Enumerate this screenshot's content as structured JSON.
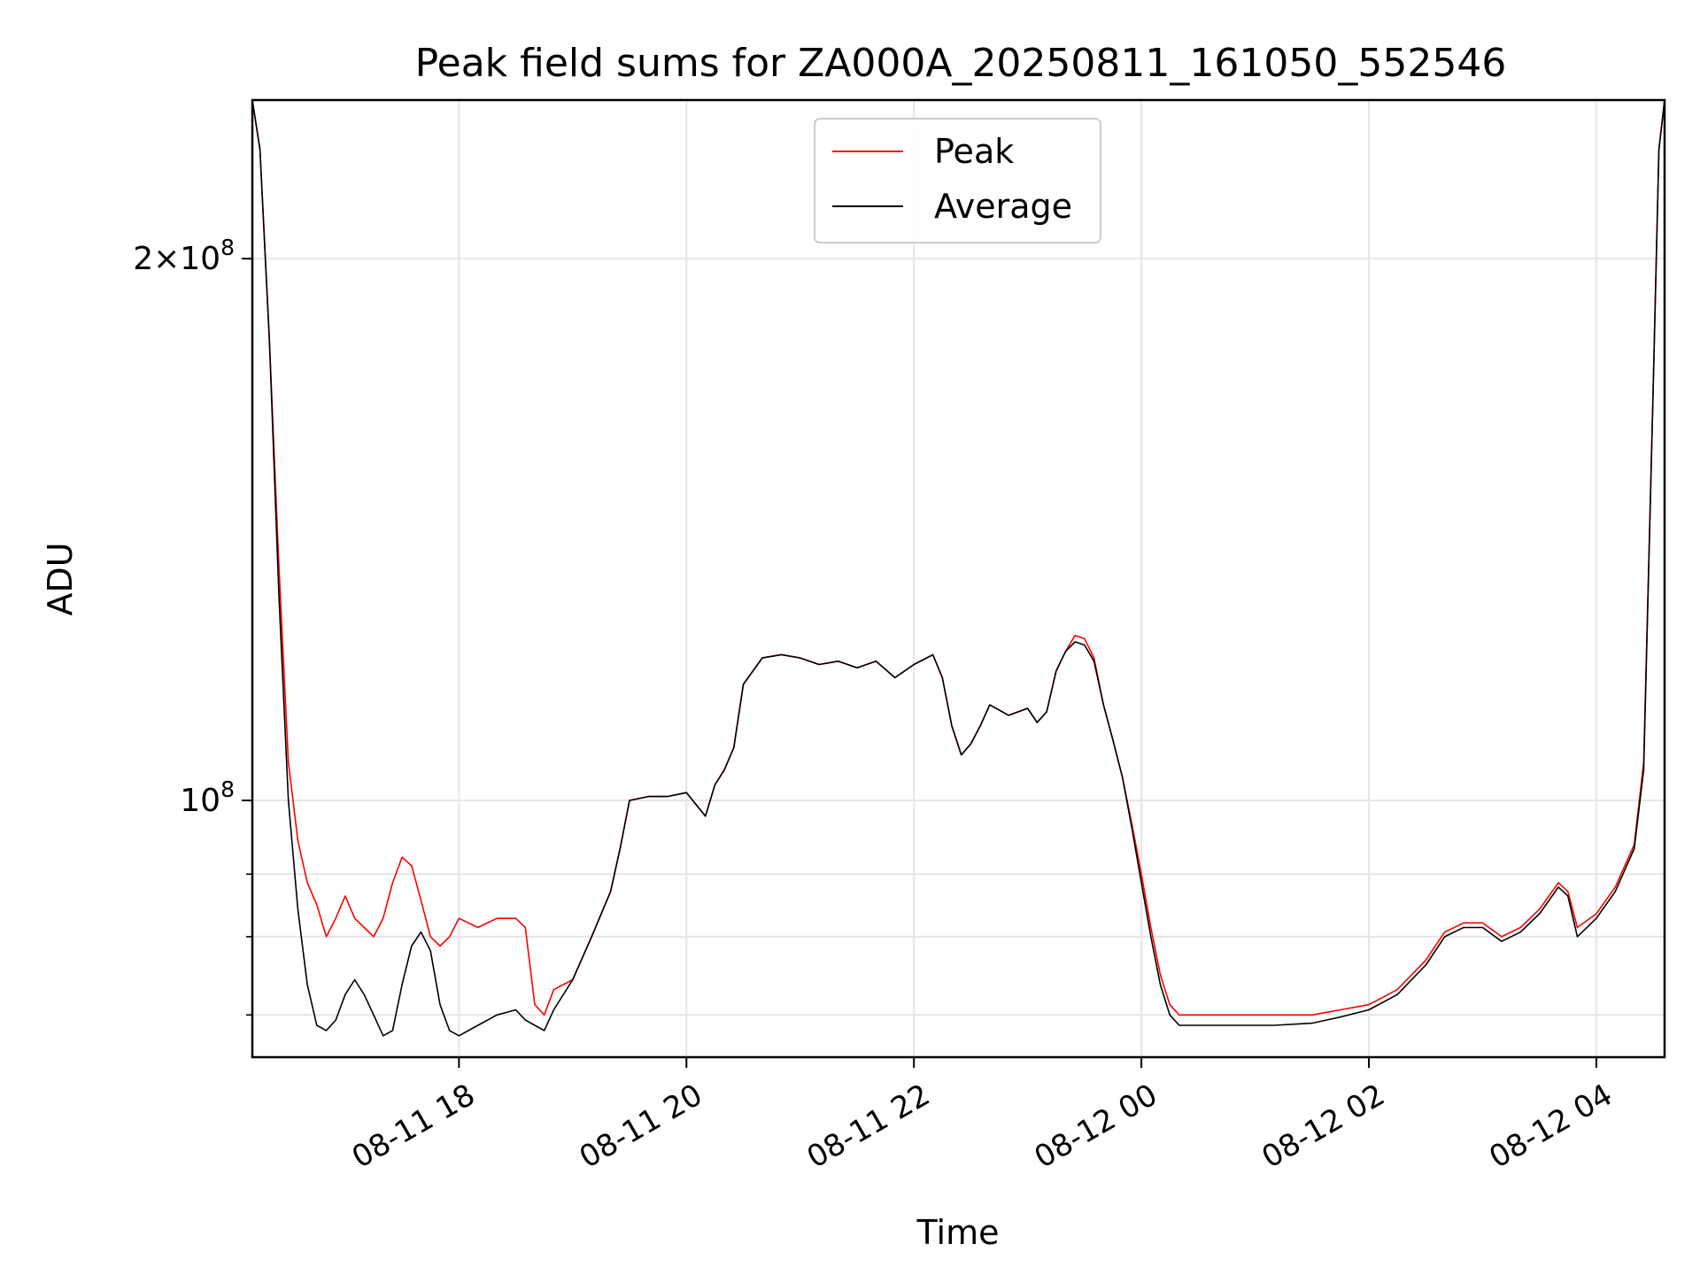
{
  "chart_data": {
    "type": "line",
    "title": "Peak field sums for ZA000A_20250811_161050_552546",
    "xlabel": "Time",
    "ylabel": "ADU",
    "yscale": "log",
    "grid": true,
    "legend_placement": "upper center",
    "xlim": [
      "2025-08-11 16:11",
      "2025-08-12 04:36"
    ],
    "ylim": [
      72000000,
      245000000
    ],
    "x_ticks": [
      {
        "label": "08-11 18",
        "time": "2025-08-11 18:00"
      },
      {
        "label": "08-11 20",
        "time": "2025-08-11 20:00"
      },
      {
        "label": "08-11 22",
        "time": "2025-08-11 22:00"
      },
      {
        "label": "08-12 00",
        "time": "2025-08-12 00:00"
      },
      {
        "label": "08-12 02",
        "time": "2025-08-12 02:00"
      },
      {
        "label": "08-12 04",
        "time": "2025-08-12 04:00"
      }
    ],
    "y_ticks": [
      {
        "value": 100000000,
        "mantissa": "",
        "base": "10",
        "exp": "8"
      },
      {
        "value": 200000000,
        "mantissa": "2×",
        "base": "10",
        "exp": "8"
      }
    ],
    "y_minor_ticks": [
      76000000,
      84000000,
      91000000
    ],
    "series": [
      {
        "name": "Peak",
        "color": "#ff0000",
        "points": [
          [
            "2025-08-11 16:11",
            245000000
          ],
          [
            "2025-08-11 16:15",
            230000000
          ],
          [
            "2025-08-11 16:20",
            180000000
          ],
          [
            "2025-08-11 16:25",
            135000000
          ],
          [
            "2025-08-11 16:30",
            105000000
          ],
          [
            "2025-08-11 16:35",
            95000000
          ],
          [
            "2025-08-11 16:40",
            90000000
          ],
          [
            "2025-08-11 16:45",
            87500000
          ],
          [
            "2025-08-11 16:50",
            84000000
          ],
          [
            "2025-08-11 16:55",
            86000000
          ],
          [
            "2025-08-11 17:00",
            88500000
          ],
          [
            "2025-08-11 17:05",
            86000000
          ],
          [
            "2025-08-11 17:10",
            85000000
          ],
          [
            "2025-08-11 17:15",
            84000000
          ],
          [
            "2025-08-11 17:20",
            86000000
          ],
          [
            "2025-08-11 17:25",
            90000000
          ],
          [
            "2025-08-11 17:30",
            93000000
          ],
          [
            "2025-08-11 17:35",
            92000000
          ],
          [
            "2025-08-11 17:40",
            88000000
          ],
          [
            "2025-08-11 17:45",
            84000000
          ],
          [
            "2025-08-11 17:50",
            83000000
          ],
          [
            "2025-08-11 17:55",
            84000000
          ],
          [
            "2025-08-11 18:00",
            86000000
          ],
          [
            "2025-08-11 18:10",
            85000000
          ],
          [
            "2025-08-11 18:20",
            86000000
          ],
          [
            "2025-08-11 18:30",
            86000000
          ],
          [
            "2025-08-11 18:35",
            85000000
          ],
          [
            "2025-08-11 18:40",
            77000000
          ],
          [
            "2025-08-11 18:45",
            76000000
          ],
          [
            "2025-08-11 18:50",
            78500000
          ],
          [
            "2025-08-11 19:00",
            79500000
          ],
          [
            "2025-08-11 19:10",
            84000000
          ],
          [
            "2025-08-11 19:20",
            89000000
          ],
          [
            "2025-08-11 19:25",
            94000000
          ],
          [
            "2025-08-11 19:30",
            100000000
          ],
          [
            "2025-08-11 19:40",
            100500000
          ],
          [
            "2025-08-11 19:50",
            100500000
          ],
          [
            "2025-08-11 20:00",
            101000000
          ],
          [
            "2025-08-11 20:10",
            98000000
          ],
          [
            "2025-08-11 20:15",
            102000000
          ],
          [
            "2025-08-11 20:20",
            104000000
          ],
          [
            "2025-08-11 20:25",
            107000000
          ],
          [
            "2025-08-11 20:30",
            116000000
          ],
          [
            "2025-08-11 20:40",
            120000000
          ],
          [
            "2025-08-11 20:50",
            120500000
          ],
          [
            "2025-08-11 21:00",
            120000000
          ],
          [
            "2025-08-11 21:10",
            119000000
          ],
          [
            "2025-08-11 21:20",
            119500000
          ],
          [
            "2025-08-11 21:30",
            118500000
          ],
          [
            "2025-08-11 21:40",
            119500000
          ],
          [
            "2025-08-11 21:50",
            117000000
          ],
          [
            "2025-08-11 22:00",
            119000000
          ],
          [
            "2025-08-11 22:10",
            120500000
          ],
          [
            "2025-08-11 22:15",
            117000000
          ],
          [
            "2025-08-11 22:20",
            110000000
          ],
          [
            "2025-08-11 22:25",
            106000000
          ],
          [
            "2025-08-11 22:30",
            107500000
          ],
          [
            "2025-08-11 22:35",
            110000000
          ],
          [
            "2025-08-11 22:40",
            113000000
          ],
          [
            "2025-08-11 22:50",
            111500000
          ],
          [
            "2025-08-11 23:00",
            112500000
          ],
          [
            "2025-08-11 23:05",
            110500000
          ],
          [
            "2025-08-11 23:10",
            112000000
          ],
          [
            "2025-08-11 23:15",
            118000000
          ],
          [
            "2025-08-11 23:20",
            121000000
          ],
          [
            "2025-08-11 23:25",
            123500000
          ],
          [
            "2025-08-11 23:30",
            123000000
          ],
          [
            "2025-08-11 23:35",
            120000000
          ],
          [
            "2025-08-11 23:40",
            113000000
          ],
          [
            "2025-08-11 23:45",
            108000000
          ],
          [
            "2025-08-11 23:50",
            103000000
          ],
          [
            "2025-08-11 23:55",
            97000000
          ],
          [
            "2025-08-12 00:00",
            91000000
          ],
          [
            "2025-08-12 00:05",
            85000000
          ],
          [
            "2025-08-12 00:10",
            80000000
          ],
          [
            "2025-08-12 00:15",
            77000000
          ],
          [
            "2025-08-12 00:20",
            76000000
          ],
          [
            "2025-08-12 00:30",
            76000000
          ],
          [
            "2025-08-12 00:50",
            76000000
          ],
          [
            "2025-08-12 01:10",
            76000000
          ],
          [
            "2025-08-12 01:30",
            76000000
          ],
          [
            "2025-08-12 01:45",
            76500000
          ],
          [
            "2025-08-12 02:00",
            77000000
          ],
          [
            "2025-08-12 02:15",
            78500000
          ],
          [
            "2025-08-12 02:30",
            81500000
          ],
          [
            "2025-08-12 02:40",
            84500000
          ],
          [
            "2025-08-12 02:50",
            85500000
          ],
          [
            "2025-08-12 03:00",
            85500000
          ],
          [
            "2025-08-12 03:10",
            84000000
          ],
          [
            "2025-08-12 03:20",
            85000000
          ],
          [
            "2025-08-12 03:30",
            87000000
          ],
          [
            "2025-08-12 03:40",
            90000000
          ],
          [
            "2025-08-12 03:45",
            89000000
          ],
          [
            "2025-08-12 03:50",
            85000000
          ],
          [
            "2025-08-12 04:00",
            86500000
          ],
          [
            "2025-08-12 04:10",
            89500000
          ],
          [
            "2025-08-12 04:20",
            94500000
          ],
          [
            "2025-08-12 04:25",
            105000000
          ],
          [
            "2025-08-12 04:30",
            170000000
          ],
          [
            "2025-08-12 04:33",
            230000000
          ],
          [
            "2025-08-12 04:36",
            245000000
          ]
        ]
      },
      {
        "name": "Average",
        "color": "#000000",
        "points": [
          [
            "2025-08-11 16:11",
            245000000
          ],
          [
            "2025-08-11 16:15",
            230000000
          ],
          [
            "2025-08-11 16:20",
            180000000
          ],
          [
            "2025-08-11 16:25",
            130000000
          ],
          [
            "2025-08-11 16:30",
            100000000
          ],
          [
            "2025-08-11 16:35",
            87000000
          ],
          [
            "2025-08-11 16:40",
            79000000
          ],
          [
            "2025-08-11 16:45",
            75000000
          ],
          [
            "2025-08-11 16:50",
            74500000
          ],
          [
            "2025-08-11 16:55",
            75500000
          ],
          [
            "2025-08-11 17:00",
            78000000
          ],
          [
            "2025-08-11 17:05",
            79500000
          ],
          [
            "2025-08-11 17:10",
            78000000
          ],
          [
            "2025-08-11 17:15",
            76000000
          ],
          [
            "2025-08-11 17:20",
            74000000
          ],
          [
            "2025-08-11 17:25",
            74500000
          ],
          [
            "2025-08-11 17:30",
            79000000
          ],
          [
            "2025-08-11 17:35",
            83000000
          ],
          [
            "2025-08-11 17:40",
            84500000
          ],
          [
            "2025-08-11 17:45",
            82500000
          ],
          [
            "2025-08-11 17:50",
            77000000
          ],
          [
            "2025-08-11 17:55",
            74500000
          ],
          [
            "2025-08-11 18:00",
            74000000
          ],
          [
            "2025-08-11 18:10",
            75000000
          ],
          [
            "2025-08-11 18:20",
            76000000
          ],
          [
            "2025-08-11 18:30",
            76500000
          ],
          [
            "2025-08-11 18:35",
            75500000
          ],
          [
            "2025-08-11 18:40",
            75000000
          ],
          [
            "2025-08-11 18:45",
            74500000
          ],
          [
            "2025-08-11 18:50",
            76500000
          ],
          [
            "2025-08-11 19:00",
            79500000
          ],
          [
            "2025-08-11 19:10",
            84000000
          ],
          [
            "2025-08-11 19:20",
            89000000
          ],
          [
            "2025-08-11 19:25",
            94000000
          ],
          [
            "2025-08-11 19:30",
            100000000
          ],
          [
            "2025-08-11 19:40",
            100500000
          ],
          [
            "2025-08-11 19:50",
            100500000
          ],
          [
            "2025-08-11 20:00",
            101000000
          ],
          [
            "2025-08-11 20:10",
            98000000
          ],
          [
            "2025-08-11 20:15",
            102000000
          ],
          [
            "2025-08-11 20:20",
            104000000
          ],
          [
            "2025-08-11 20:25",
            107000000
          ],
          [
            "2025-08-11 20:30",
            116000000
          ],
          [
            "2025-08-11 20:40",
            120000000
          ],
          [
            "2025-08-11 20:50",
            120500000
          ],
          [
            "2025-08-11 21:00",
            120000000
          ],
          [
            "2025-08-11 21:10",
            119000000
          ],
          [
            "2025-08-11 21:20",
            119500000
          ],
          [
            "2025-08-11 21:30",
            118500000
          ],
          [
            "2025-08-11 21:40",
            119500000
          ],
          [
            "2025-08-11 21:50",
            117000000
          ],
          [
            "2025-08-11 22:00",
            119000000
          ],
          [
            "2025-08-11 22:10",
            120500000
          ],
          [
            "2025-08-11 22:15",
            117000000
          ],
          [
            "2025-08-11 22:20",
            110000000
          ],
          [
            "2025-08-11 22:25",
            106000000
          ],
          [
            "2025-08-11 22:30",
            107500000
          ],
          [
            "2025-08-11 22:35",
            110000000
          ],
          [
            "2025-08-11 22:40",
            113000000
          ],
          [
            "2025-08-11 22:50",
            111500000
          ],
          [
            "2025-08-11 23:00",
            112500000
          ],
          [
            "2025-08-11 23:05",
            110500000
          ],
          [
            "2025-08-11 23:10",
            112000000
          ],
          [
            "2025-08-11 23:15",
            118000000
          ],
          [
            "2025-08-11 23:20",
            121000000
          ],
          [
            "2025-08-11 23:25",
            122500000
          ],
          [
            "2025-08-11 23:30",
            122000000
          ],
          [
            "2025-08-11 23:35",
            119500000
          ],
          [
            "2025-08-11 23:40",
            113000000
          ],
          [
            "2025-08-11 23:45",
            108000000
          ],
          [
            "2025-08-11 23:50",
            103000000
          ],
          [
            "2025-08-11 23:55",
            96500000
          ],
          [
            "2025-08-12 00:00",
            90000000
          ],
          [
            "2025-08-12 00:05",
            84000000
          ],
          [
            "2025-08-12 00:10",
            79000000
          ],
          [
            "2025-08-12 00:15",
            76000000
          ],
          [
            "2025-08-12 00:20",
            75000000
          ],
          [
            "2025-08-12 00:30",
            75000000
          ],
          [
            "2025-08-12 00:50",
            75000000
          ],
          [
            "2025-08-12 01:10",
            75000000
          ],
          [
            "2025-08-12 01:30",
            75200000
          ],
          [
            "2025-08-12 01:45",
            75800000
          ],
          [
            "2025-08-12 02:00",
            76500000
          ],
          [
            "2025-08-12 02:15",
            78000000
          ],
          [
            "2025-08-12 02:30",
            81000000
          ],
          [
            "2025-08-12 02:40",
            84000000
          ],
          [
            "2025-08-12 02:50",
            85000000
          ],
          [
            "2025-08-12 03:00",
            85000000
          ],
          [
            "2025-08-12 03:10",
            83500000
          ],
          [
            "2025-08-12 03:20",
            84500000
          ],
          [
            "2025-08-12 03:30",
            86500000
          ],
          [
            "2025-08-12 03:40",
            89500000
          ],
          [
            "2025-08-12 03:45",
            88500000
          ],
          [
            "2025-08-12 03:50",
            84000000
          ],
          [
            "2025-08-12 04:00",
            86000000
          ],
          [
            "2025-08-12 04:10",
            89000000
          ],
          [
            "2025-08-12 04:20",
            94000000
          ],
          [
            "2025-08-12 04:25",
            104000000
          ],
          [
            "2025-08-12 04:30",
            170000000
          ],
          [
            "2025-08-12 04:33",
            230000000
          ],
          [
            "2025-08-12 04:36",
            245000000
          ]
        ]
      }
    ]
  }
}
